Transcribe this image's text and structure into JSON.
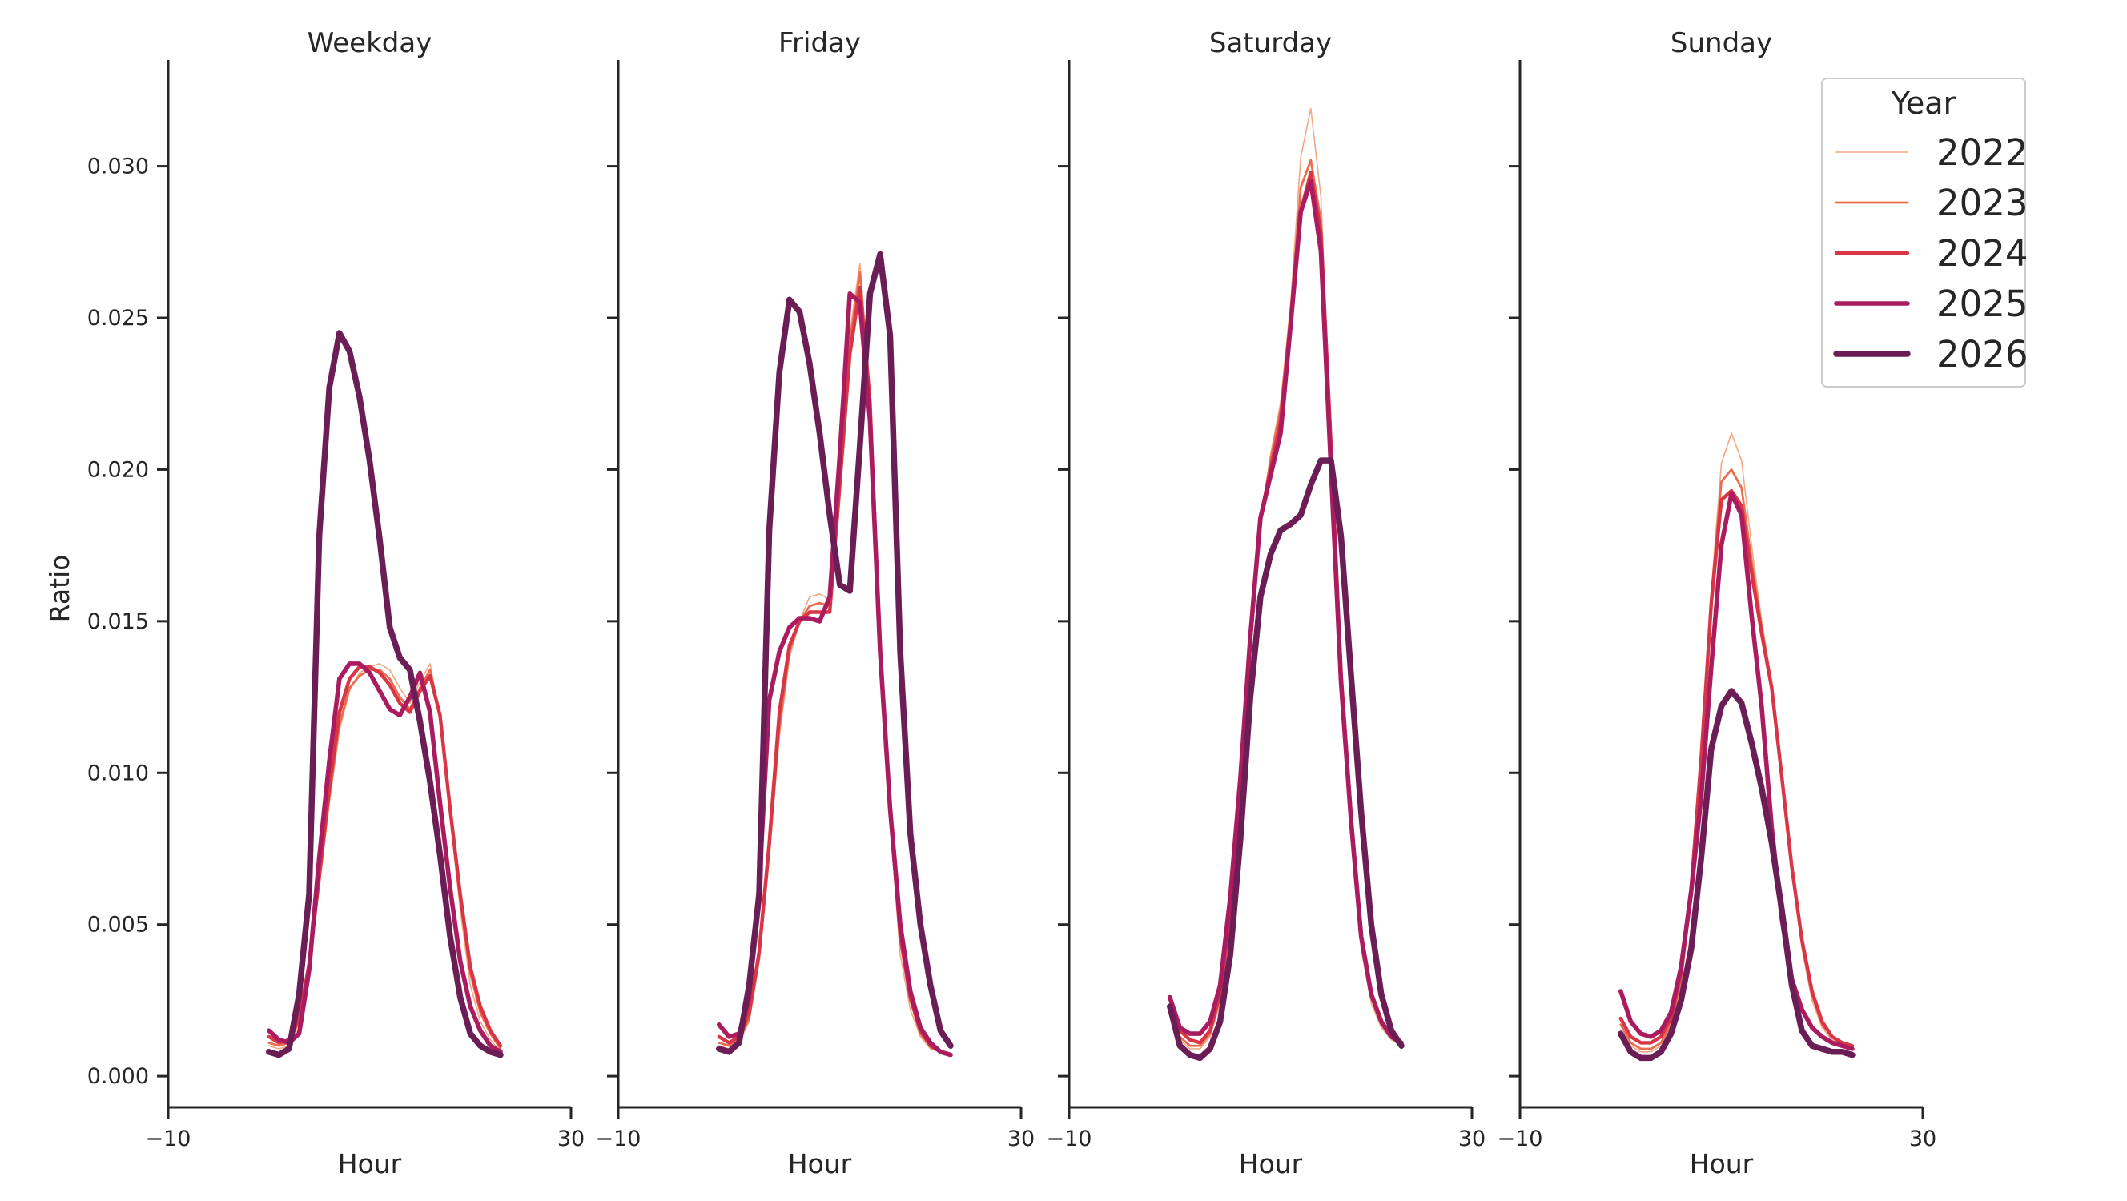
{
  "chart_data": {
    "type": "line",
    "ylabel": "Ratio",
    "xlabel": "Hour",
    "xlim": [
      -10,
      30
    ],
    "ylim": [
      -0.001,
      0.0335
    ],
    "x_ticks": [
      -10,
      30
    ],
    "x_tick_labels": [
      "−10",
      "30"
    ],
    "y_ticks": [
      0.0,
      0.005,
      0.01,
      0.015,
      0.02,
      0.025,
      0.03
    ],
    "y_tick_labels": [
      "0.000",
      "0.005",
      "0.010",
      "0.015",
      "0.020",
      "0.025",
      "0.030"
    ],
    "grid": false,
    "legend": {
      "title": "Year",
      "placement": "top-right",
      "entries": [
        "2022",
        "2023",
        "2024",
        "2025",
        "2026"
      ]
    },
    "series_colors": {
      "2022": "#f1a983",
      "2023": "#ea6d4f",
      "2024": "#d83546",
      "2025": "#aa1c5f",
      "2026": "#6b1e56"
    },
    "x": [
      0,
      1,
      2,
      3,
      4,
      5,
      6,
      7,
      8,
      9,
      10,
      11,
      12,
      13,
      14,
      15,
      16,
      17,
      18,
      19,
      20,
      21,
      22,
      23
    ],
    "panels": [
      {
        "title": "Weekday",
        "series": [
          {
            "name": "2022",
            "values": [
              0.001,
              0.0009,
              0.001,
              0.0016,
              0.0034,
              0.0062,
              0.009,
              0.0114,
              0.0127,
              0.0133,
              0.0135,
              0.0136,
              0.0134,
              0.0128,
              0.0123,
              0.013,
              0.0136,
              0.0118,
              0.0085,
              0.0055,
              0.003,
              0.0018,
              0.0012,
              0.0008
            ]
          },
          {
            "name": "2023",
            "values": [
              0.0011,
              0.001,
              0.0011,
              0.0018,
              0.0036,
              0.0064,
              0.0092,
              0.0116,
              0.0128,
              0.0132,
              0.0134,
              0.0134,
              0.0131,
              0.0125,
              0.0121,
              0.0128,
              0.0134,
              0.0119,
              0.0087,
              0.0058,
              0.0034,
              0.0021,
              0.0014,
              0.0009
            ]
          },
          {
            "name": "2024",
            "values": [
              0.0013,
              0.0011,
              0.0012,
              0.0019,
              0.0037,
              0.0066,
              0.0095,
              0.012,
              0.0131,
              0.0135,
              0.0135,
              0.0133,
              0.0129,
              0.0123,
              0.012,
              0.0127,
              0.0132,
              0.0119,
              0.0088,
              0.006,
              0.0036,
              0.0023,
              0.0015,
              0.001
            ]
          },
          {
            "name": "2025",
            "values": [
              0.0015,
              0.0012,
              0.0011,
              0.0014,
              0.0035,
              0.0072,
              0.0104,
              0.0131,
              0.0136,
              0.0136,
              0.0133,
              0.0127,
              0.0121,
              0.0119,
              0.0125,
              0.0133,
              0.012,
              0.009,
              0.0062,
              0.0038,
              0.0023,
              0.0015,
              0.001,
              0.0008
            ]
          },
          {
            "name": "2026",
            "values": [
              0.0008,
              0.0007,
              0.0009,
              0.0027,
              0.006,
              0.0178,
              0.0227,
              0.0245,
              0.0239,
              0.0224,
              0.0203,
              0.0177,
              0.0148,
              0.0138,
              0.0134,
              0.0117,
              0.0097,
              0.0073,
              0.0046,
              0.0026,
              0.0014,
              0.001,
              0.0008,
              0.0007
            ]
          }
        ]
      },
      {
        "title": "Friday",
        "series": [
          {
            "name": "2022",
            "values": [
              0.001,
              0.0009,
              0.0011,
              0.0018,
              0.0038,
              0.0072,
              0.0112,
              0.0138,
              0.015,
              0.0158,
              0.0159,
              0.0157,
              0.02,
              0.0245,
              0.0268,
              0.0224,
              0.0138,
              0.0085,
              0.004,
              0.0022,
              0.0013,
              0.0009,
              0.0008,
              0.0007
            ]
          },
          {
            "name": "2023",
            "values": [
              0.0011,
              0.001,
              0.0012,
              0.0019,
              0.0039,
              0.0074,
              0.0115,
              0.014,
              0.015,
              0.0155,
              0.0156,
              0.0155,
              0.0198,
              0.0242,
              0.0265,
              0.0225,
              0.014,
              0.0087,
              0.0045,
              0.0025,
              0.0014,
              0.001,
              0.0008,
              0.0007
            ]
          },
          {
            "name": "2024",
            "values": [
              0.0013,
              0.0011,
              0.0013,
              0.0021,
              0.0041,
              0.0077,
              0.012,
              0.0142,
              0.015,
              0.0153,
              0.0153,
              0.0153,
              0.0195,
              0.0238,
              0.026,
              0.0222,
              0.014,
              0.0088,
              0.0046,
              0.0026,
              0.0015,
              0.001,
              0.0008,
              0.0007
            ]
          },
          {
            "name": "2025",
            "values": [
              0.0017,
              0.0013,
              0.0014,
              0.0026,
              0.0063,
              0.0124,
              0.014,
              0.0148,
              0.0151,
              0.0151,
              0.015,
              0.0158,
              0.0205,
              0.0258,
              0.0255,
              0.0216,
              0.014,
              0.0088,
              0.005,
              0.0028,
              0.0016,
              0.0011,
              0.0008,
              0.0007
            ]
          },
          {
            "name": "2026",
            "values": [
              0.0009,
              0.0008,
              0.0011,
              0.003,
              0.006,
              0.018,
              0.0232,
              0.0256,
              0.0252,
              0.0235,
              0.0212,
              0.0185,
              0.0162,
              0.016,
              0.0208,
              0.0258,
              0.0271,
              0.0244,
              0.014,
              0.008,
              0.005,
              0.003,
              0.0015,
              0.001
            ]
          }
        ]
      },
      {
        "title": "Saturday",
        "series": [
          {
            "name": "2022",
            "values": [
              0.002,
              0.0012,
              0.0009,
              0.0009,
              0.0013,
              0.0024,
              0.005,
              0.009,
              0.014,
              0.0182,
              0.0205,
              0.0222,
              0.0255,
              0.0303,
              0.0319,
              0.029,
              0.021,
              0.0135,
              0.0085,
              0.0042,
              0.0024,
              0.0016,
              0.0012,
              0.001
            ]
          },
          {
            "name": "2023",
            "values": [
              0.0021,
              0.0013,
              0.001,
              0.001,
              0.0014,
              0.0026,
              0.0052,
              0.0092,
              0.0142,
              0.0183,
              0.0203,
              0.022,
              0.0252,
              0.0293,
              0.0302,
              0.0282,
              0.021,
              0.0135,
              0.0086,
              0.0045,
              0.0026,
              0.0017,
              0.0013,
              0.001
            ]
          },
          {
            "name": "2024",
            "values": [
              0.0023,
              0.0015,
              0.0012,
              0.0011,
              0.0015,
              0.0027,
              0.0053,
              0.0093,
              0.0143,
              0.0184,
              0.02,
              0.0216,
              0.0248,
              0.0285,
              0.0298,
              0.0278,
              0.0208,
              0.0133,
              0.0086,
              0.0046,
              0.0027,
              0.0018,
              0.0013,
              0.0011
            ]
          },
          {
            "name": "2025",
            "values": [
              0.0026,
              0.0016,
              0.0014,
              0.0014,
              0.0018,
              0.003,
              0.0059,
              0.0098,
              0.0145,
              0.0184,
              0.0198,
              0.0212,
              0.0248,
              0.0285,
              0.0295,
              0.0272,
              0.02,
              0.013,
              0.0084,
              0.0046,
              0.0027,
              0.0018,
              0.0013,
              0.0011
            ]
          },
          {
            "name": "2026",
            "values": [
              0.0023,
              0.001,
              0.0007,
              0.0006,
              0.0009,
              0.0018,
              0.004,
              0.0078,
              0.0125,
              0.0158,
              0.0172,
              0.018,
              0.0182,
              0.0185,
              0.0195,
              0.0203,
              0.0203,
              0.0178,
              0.0132,
              0.0087,
              0.005,
              0.0027,
              0.0015,
              0.001
            ]
          }
        ]
      },
      {
        "title": "Sunday",
        "series": [
          {
            "name": "2022",
            "values": [
              0.0015,
              0.001,
              0.0008,
              0.0008,
              0.001,
              0.0016,
              0.003,
              0.0058,
              0.0102,
              0.016,
              0.0202,
              0.0212,
              0.0203,
              0.0175,
              0.015,
              0.013,
              0.01,
              0.0068,
              0.0042,
              0.0025,
              0.0016,
              0.0012,
              0.001,
              0.0009
            ]
          },
          {
            "name": "2023",
            "values": [
              0.0017,
              0.0011,
              0.0009,
              0.0009,
              0.0011,
              0.0017,
              0.0032,
              0.006,
              0.0104,
              0.0158,
              0.0196,
              0.02,
              0.0194,
              0.017,
              0.0148,
              0.0129,
              0.01,
              0.0069,
              0.0044,
              0.0027,
              0.0017,
              0.0013,
              0.001,
              0.0009
            ]
          },
          {
            "name": "2024",
            "values": [
              0.0019,
              0.0013,
              0.0011,
              0.0011,
              0.0013,
              0.0019,
              0.0034,
              0.0062,
              0.0105,
              0.0156,
              0.019,
              0.0193,
              0.0188,
              0.0166,
              0.0146,
              0.0128,
              0.0099,
              0.0069,
              0.0045,
              0.0028,
              0.0018,
              0.0013,
              0.0011,
              0.001
            ]
          },
          {
            "name": "2025",
            "values": [
              0.0028,
              0.0018,
              0.0014,
              0.0013,
              0.0015,
              0.0021,
              0.0036,
              0.0061,
              0.0092,
              0.0135,
              0.0175,
              0.0192,
              0.0185,
              0.0152,
              0.0122,
              0.0082,
              0.0052,
              0.0032,
              0.0022,
              0.0016,
              0.0013,
              0.0011,
              0.001,
              0.0009
            ]
          },
          {
            "name": "2026",
            "values": [
              0.0014,
              0.0008,
              0.0006,
              0.0006,
              0.0008,
              0.0014,
              0.0025,
              0.0042,
              0.0072,
              0.0108,
              0.0122,
              0.0127,
              0.0123,
              0.011,
              0.0095,
              0.0077,
              0.0055,
              0.003,
              0.0015,
              0.001,
              0.0009,
              0.0008,
              0.0008,
              0.0007
            ]
          }
        ]
      }
    ]
  }
}
